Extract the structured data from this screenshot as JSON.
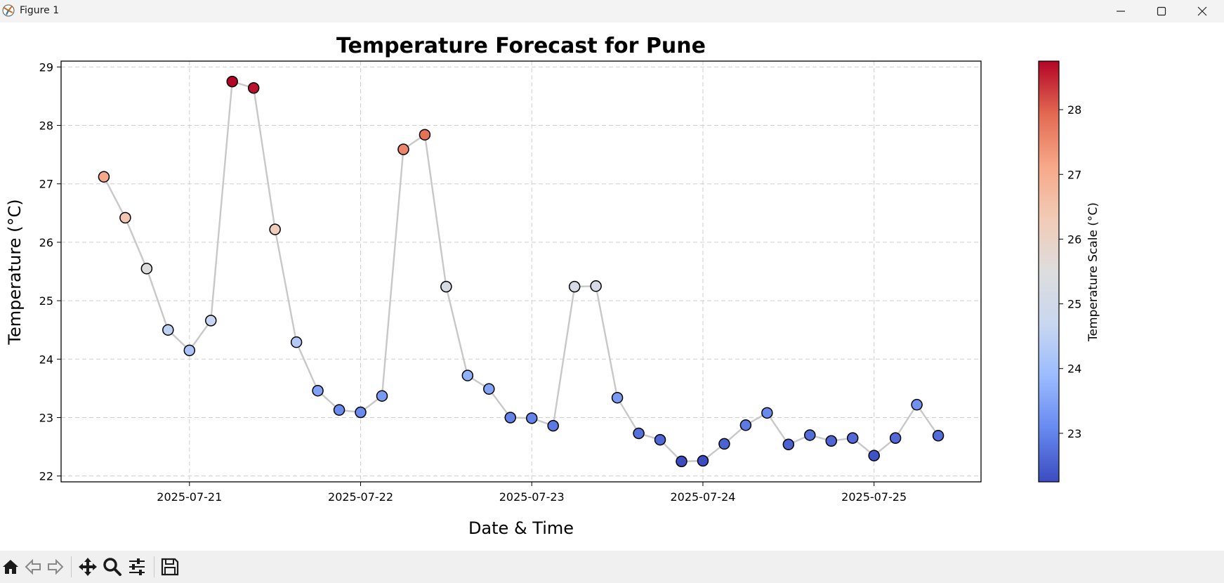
{
  "window": {
    "title": "Figure 1"
  },
  "titlebar_icons": [
    "app-icon",
    "minimize-icon",
    "maximize-icon",
    "close-icon"
  ],
  "toolbar": {
    "buttons": [
      {
        "name": "home",
        "icon": "home-icon"
      },
      {
        "name": "back",
        "icon": "back-arrow-icon"
      },
      {
        "name": "forward",
        "icon": "forward-arrow-icon"
      },
      {
        "name": "pan",
        "icon": "move-icon"
      },
      {
        "name": "zoom",
        "icon": "magnifier-icon"
      },
      {
        "name": "configure",
        "icon": "sliders-icon"
      },
      {
        "name": "save",
        "icon": "floppy-disk-icon"
      }
    ]
  },
  "chart_data": {
    "type": "scatter",
    "title": "Temperature Forecast for Pune",
    "xlabel": "Date & Time",
    "ylabel": "Temperature (°C)",
    "colorbar_label": "Temperature Scale (°C)",
    "colormap": "coolwarm",
    "colormap_stops": [
      "#3b4cc0",
      "#6788ee",
      "#9abbff",
      "#c9d7f0",
      "#dddddd",
      "#f2cbb7",
      "#f7a889",
      "#e26952",
      "#b40426"
    ],
    "line_color": "#c8c8c8",
    "grid": true,
    "xlim": [
      "2025-07-20 06:00",
      "2025-07-25 15:00"
    ],
    "ylim": [
      21.9,
      29.1
    ],
    "x_ticks": [
      "2025-07-21",
      "2025-07-22",
      "2025-07-23",
      "2025-07-24",
      "2025-07-25"
    ],
    "y_ticks": [
      22,
      23,
      24,
      25,
      26,
      27,
      28,
      29
    ],
    "colorbar_range": [
      22.25,
      28.75
    ],
    "colorbar_ticks": [
      23,
      24,
      25,
      26,
      27,
      28
    ],
    "series": [
      {
        "x": [
          "2025-07-20 12:00",
          "2025-07-20 15:00",
          "2025-07-20 18:00",
          "2025-07-20 21:00",
          "2025-07-21 00:00",
          "2025-07-21 03:00",
          "2025-07-21 06:00",
          "2025-07-21 09:00",
          "2025-07-21 12:00",
          "2025-07-21 15:00",
          "2025-07-21 18:00",
          "2025-07-21 21:00",
          "2025-07-22 00:00",
          "2025-07-22 03:00",
          "2025-07-22 06:00",
          "2025-07-22 09:00",
          "2025-07-22 12:00",
          "2025-07-22 15:00",
          "2025-07-22 18:00",
          "2025-07-22 21:00",
          "2025-07-23 00:00",
          "2025-07-23 03:00",
          "2025-07-23 06:00",
          "2025-07-23 09:00",
          "2025-07-23 12:00",
          "2025-07-23 15:00",
          "2025-07-23 18:00",
          "2025-07-23 21:00",
          "2025-07-24 00:00",
          "2025-07-24 03:00",
          "2025-07-24 06:00",
          "2025-07-24 09:00",
          "2025-07-24 12:00",
          "2025-07-24 15:00",
          "2025-07-24 18:00",
          "2025-07-24 21:00",
          "2025-07-25 00:00",
          "2025-07-25 03:00",
          "2025-07-25 06:00",
          "2025-07-25 09:00"
        ],
        "y": [
          27.12,
          26.42,
          25.55,
          24.5,
          24.15,
          24.66,
          28.75,
          28.64,
          26.22,
          24.29,
          23.46,
          23.13,
          23.09,
          23.37,
          27.59,
          27.84,
          25.24,
          23.72,
          23.49,
          23.0,
          22.99,
          22.86,
          25.24,
          25.25,
          23.34,
          22.73,
          22.62,
          22.25,
          22.26,
          22.55,
          22.87,
          23.08,
          22.54,
          22.7,
          22.6,
          22.65,
          22.35,
          22.65,
          23.22,
          22.69
        ]
      }
    ]
  }
}
